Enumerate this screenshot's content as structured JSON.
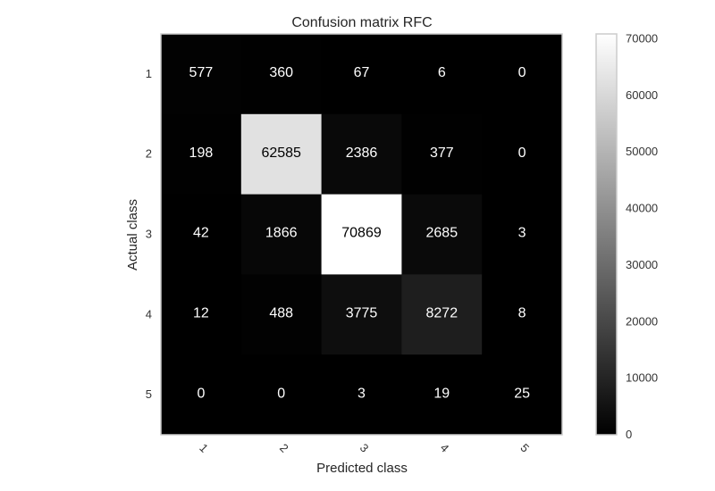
{
  "chart_data": {
    "type": "heatmap",
    "title": "Confusion matrix RFC",
    "xlabel": "Predicted class",
    "ylabel": "Actual class",
    "x_categories": [
      "1",
      "2",
      "3",
      "4",
      "5"
    ],
    "y_categories": [
      "1",
      "2",
      "3",
      "4",
      "5"
    ],
    "values": [
      [
        577,
        360,
        67,
        6,
        0
      ],
      [
        198,
        62585,
        2386,
        377,
        0
      ],
      [
        42,
        1866,
        70869,
        2685,
        3
      ],
      [
        12,
        488,
        3775,
        8272,
        8
      ],
      [
        0,
        0,
        3,
        19,
        25
      ]
    ],
    "colormap": "gray",
    "colorbar": {
      "range": [
        0,
        70869
      ],
      "ticks": [
        0,
        10000,
        20000,
        30000,
        40000,
        50000,
        60000,
        70000
      ],
      "tick_labels": [
        "0",
        "10000",
        "20000",
        "30000",
        "40000",
        "50000",
        "60000",
        "70000"
      ]
    },
    "grid": false,
    "colors": {
      "low": "#000000",
      "high": "#ffffff",
      "frame": "#cccccc"
    }
  }
}
